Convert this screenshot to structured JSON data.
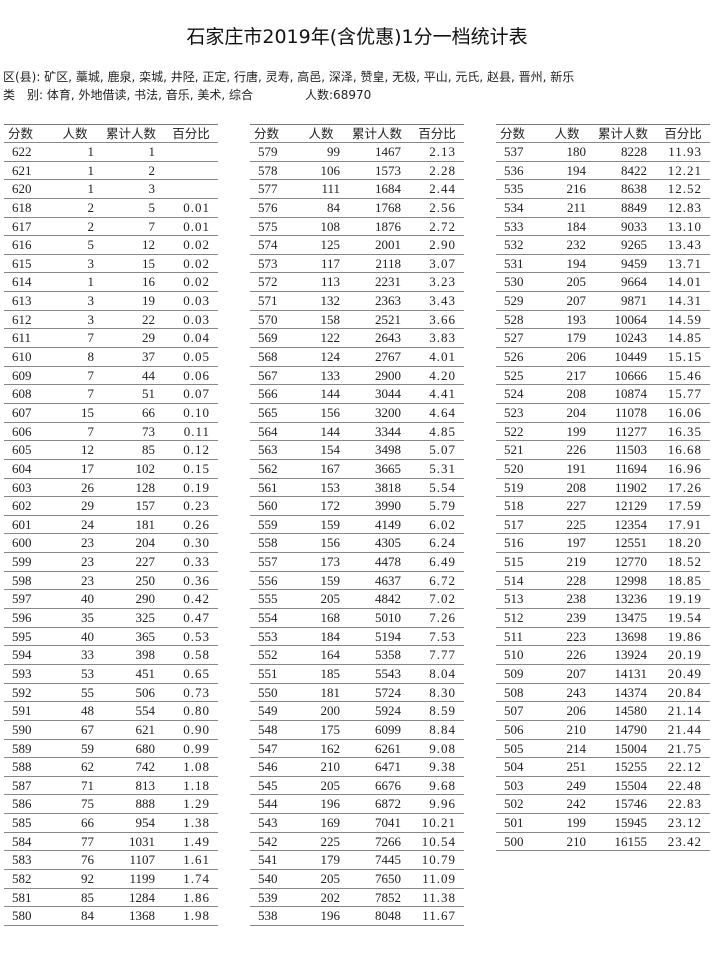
{
  "title": "石家庄市2019年(含优惠)1分一档统计表",
  "district_line": "区(县): 矿区, 藁城, 鹿泉, 栾城, 井陉, 正定, 行唐, 灵寿, 高邑, 深泽, 赞皇, 无极, 平山, 元氏, 赵县, 晋州, 新乐",
  "category_line": "类　别: 体育, 外地借读, 书法, 音乐, 美术, 综合",
  "total_count": "人数:68970",
  "headers": [
    "分数",
    "人数",
    "累计人数",
    "百分比"
  ],
  "tables": [
    [
      [
        "622",
        "1",
        "1",
        ""
      ],
      [
        "621",
        "1",
        "2",
        ""
      ],
      [
        "620",
        "1",
        "3",
        ""
      ],
      [
        "618",
        "2",
        "5",
        "0.01"
      ],
      [
        "617",
        "2",
        "7",
        "0.01"
      ],
      [
        "616",
        "5",
        "12",
        "0.02"
      ],
      [
        "615",
        "3",
        "15",
        "0.02"
      ],
      [
        "614",
        "1",
        "16",
        "0.02"
      ],
      [
        "613",
        "3",
        "19",
        "0.03"
      ],
      [
        "612",
        "3",
        "22",
        "0.03"
      ],
      [
        "611",
        "7",
        "29",
        "0.04"
      ],
      [
        "610",
        "8",
        "37",
        "0.05"
      ],
      [
        "609",
        "7",
        "44",
        "0.06"
      ],
      [
        "608",
        "7",
        "51",
        "0.07"
      ],
      [
        "607",
        "15",
        "66",
        "0.10"
      ],
      [
        "606",
        "7",
        "73",
        "0.11"
      ],
      [
        "605",
        "12",
        "85",
        "0.12"
      ],
      [
        "604",
        "17",
        "102",
        "0.15"
      ],
      [
        "603",
        "26",
        "128",
        "0.19"
      ],
      [
        "602",
        "29",
        "157",
        "0.23"
      ],
      [
        "601",
        "24",
        "181",
        "0.26"
      ],
      [
        "600",
        "23",
        "204",
        "0.30"
      ],
      [
        "599",
        "23",
        "227",
        "0.33"
      ],
      [
        "598",
        "23",
        "250",
        "0.36"
      ],
      [
        "597",
        "40",
        "290",
        "0.42"
      ],
      [
        "596",
        "35",
        "325",
        "0.47"
      ],
      [
        "595",
        "40",
        "365",
        "0.53"
      ],
      [
        "594",
        "33",
        "398",
        "0.58"
      ],
      [
        "593",
        "53",
        "451",
        "0.65"
      ],
      [
        "592",
        "55",
        "506",
        "0.73"
      ],
      [
        "591",
        "48",
        "554",
        "0.80"
      ],
      [
        "590",
        "67",
        "621",
        "0.90"
      ],
      [
        "589",
        "59",
        "680",
        "0.99"
      ],
      [
        "588",
        "62",
        "742",
        "1.08"
      ],
      [
        "587",
        "71",
        "813",
        "1.18"
      ],
      [
        "586",
        "75",
        "888",
        "1.29"
      ],
      [
        "585",
        "66",
        "954",
        "1.38"
      ],
      [
        "584",
        "77",
        "1031",
        "1.49"
      ],
      [
        "583",
        "76",
        "1107",
        "1.61"
      ],
      [
        "582",
        "92",
        "1199",
        "1.74"
      ],
      [
        "581",
        "85",
        "1284",
        "1.86"
      ],
      [
        "580",
        "84",
        "1368",
        "1.98"
      ]
    ],
    [
      [
        "579",
        "99",
        "1467",
        "2.13"
      ],
      [
        "578",
        "106",
        "1573",
        "2.28"
      ],
      [
        "577",
        "111",
        "1684",
        "2.44"
      ],
      [
        "576",
        "84",
        "1768",
        "2.56"
      ],
      [
        "575",
        "108",
        "1876",
        "2.72"
      ],
      [
        "574",
        "125",
        "2001",
        "2.90"
      ],
      [
        "573",
        "117",
        "2118",
        "3.07"
      ],
      [
        "572",
        "113",
        "2231",
        "3.23"
      ],
      [
        "571",
        "132",
        "2363",
        "3.43"
      ],
      [
        "570",
        "158",
        "2521",
        "3.66"
      ],
      [
        "569",
        "122",
        "2643",
        "3.83"
      ],
      [
        "568",
        "124",
        "2767",
        "4.01"
      ],
      [
        "567",
        "133",
        "2900",
        "4.20"
      ],
      [
        "566",
        "144",
        "3044",
        "4.41"
      ],
      [
        "565",
        "156",
        "3200",
        "4.64"
      ],
      [
        "564",
        "144",
        "3344",
        "4.85"
      ],
      [
        "563",
        "154",
        "3498",
        "5.07"
      ],
      [
        "562",
        "167",
        "3665",
        "5.31"
      ],
      [
        "561",
        "153",
        "3818",
        "5.54"
      ],
      [
        "560",
        "172",
        "3990",
        "5.79"
      ],
      [
        "559",
        "159",
        "4149",
        "6.02"
      ],
      [
        "558",
        "156",
        "4305",
        "6.24"
      ],
      [
        "557",
        "173",
        "4478",
        "6.49"
      ],
      [
        "556",
        "159",
        "4637",
        "6.72"
      ],
      [
        "555",
        "205",
        "4842",
        "7.02"
      ],
      [
        "554",
        "168",
        "5010",
        "7.26"
      ],
      [
        "553",
        "184",
        "5194",
        "7.53"
      ],
      [
        "552",
        "164",
        "5358",
        "7.77"
      ],
      [
        "551",
        "185",
        "5543",
        "8.04"
      ],
      [
        "550",
        "181",
        "5724",
        "8.30"
      ],
      [
        "549",
        "200",
        "5924",
        "8.59"
      ],
      [
        "548",
        "175",
        "6099",
        "8.84"
      ],
      [
        "547",
        "162",
        "6261",
        "9.08"
      ],
      [
        "546",
        "210",
        "6471",
        "9.38"
      ],
      [
        "545",
        "205",
        "6676",
        "9.68"
      ],
      [
        "544",
        "196",
        "6872",
        "9.96"
      ],
      [
        "543",
        "169",
        "7041",
        "10.21"
      ],
      [
        "542",
        "225",
        "7266",
        "10.54"
      ],
      [
        "541",
        "179",
        "7445",
        "10.79"
      ],
      [
        "540",
        "205",
        "7650",
        "11.09"
      ],
      [
        "539",
        "202",
        "7852",
        "11.38"
      ],
      [
        "538",
        "196",
        "8048",
        "11.67"
      ]
    ],
    [
      [
        "537",
        "180",
        "8228",
        "11.93"
      ],
      [
        "536",
        "194",
        "8422",
        "12.21"
      ],
      [
        "535",
        "216",
        "8638",
        "12.52"
      ],
      [
        "534",
        "211",
        "8849",
        "12.83"
      ],
      [
        "533",
        "184",
        "9033",
        "13.10"
      ],
      [
        "532",
        "232",
        "9265",
        "13.43"
      ],
      [
        "531",
        "194",
        "9459",
        "13.71"
      ],
      [
        "530",
        "205",
        "9664",
        "14.01"
      ],
      [
        "529",
        "207",
        "9871",
        "14.31"
      ],
      [
        "528",
        "193",
        "10064",
        "14.59"
      ],
      [
        "527",
        "179",
        "10243",
        "14.85"
      ],
      [
        "526",
        "206",
        "10449",
        "15.15"
      ],
      [
        "525",
        "217",
        "10666",
        "15.46"
      ],
      [
        "524",
        "208",
        "10874",
        "15.77"
      ],
      [
        "523",
        "204",
        "11078",
        "16.06"
      ],
      [
        "522",
        "199",
        "11277",
        "16.35"
      ],
      [
        "521",
        "226",
        "11503",
        "16.68"
      ],
      [
        "520",
        "191",
        "11694",
        "16.96"
      ],
      [
        "519",
        "208",
        "11902",
        "17.26"
      ],
      [
        "518",
        "227",
        "12129",
        "17.59"
      ],
      [
        "517",
        "225",
        "12354",
        "17.91"
      ],
      [
        "516",
        "197",
        "12551",
        "18.20"
      ],
      [
        "515",
        "219",
        "12770",
        "18.52"
      ],
      [
        "514",
        "228",
        "12998",
        "18.85"
      ],
      [
        "513",
        "238",
        "13236",
        "19.19"
      ],
      [
        "512",
        "239",
        "13475",
        "19.54"
      ],
      [
        "511",
        "223",
        "13698",
        "19.86"
      ],
      [
        "510",
        "226",
        "13924",
        "20.19"
      ],
      [
        "509",
        "207",
        "14131",
        "20.49"
      ],
      [
        "508",
        "243",
        "14374",
        "20.84"
      ],
      [
        "507",
        "206",
        "14580",
        "21.14"
      ],
      [
        "506",
        "210",
        "14790",
        "21.44"
      ],
      [
        "505",
        "214",
        "15004",
        "21.75"
      ],
      [
        "504",
        "251",
        "15255",
        "22.12"
      ],
      [
        "503",
        "249",
        "15504",
        "22.48"
      ],
      [
        "502",
        "242",
        "15746",
        "22.83"
      ],
      [
        "501",
        "199",
        "15945",
        "23.12"
      ],
      [
        "500",
        "210",
        "16155",
        "23.42"
      ]
    ]
  ]
}
